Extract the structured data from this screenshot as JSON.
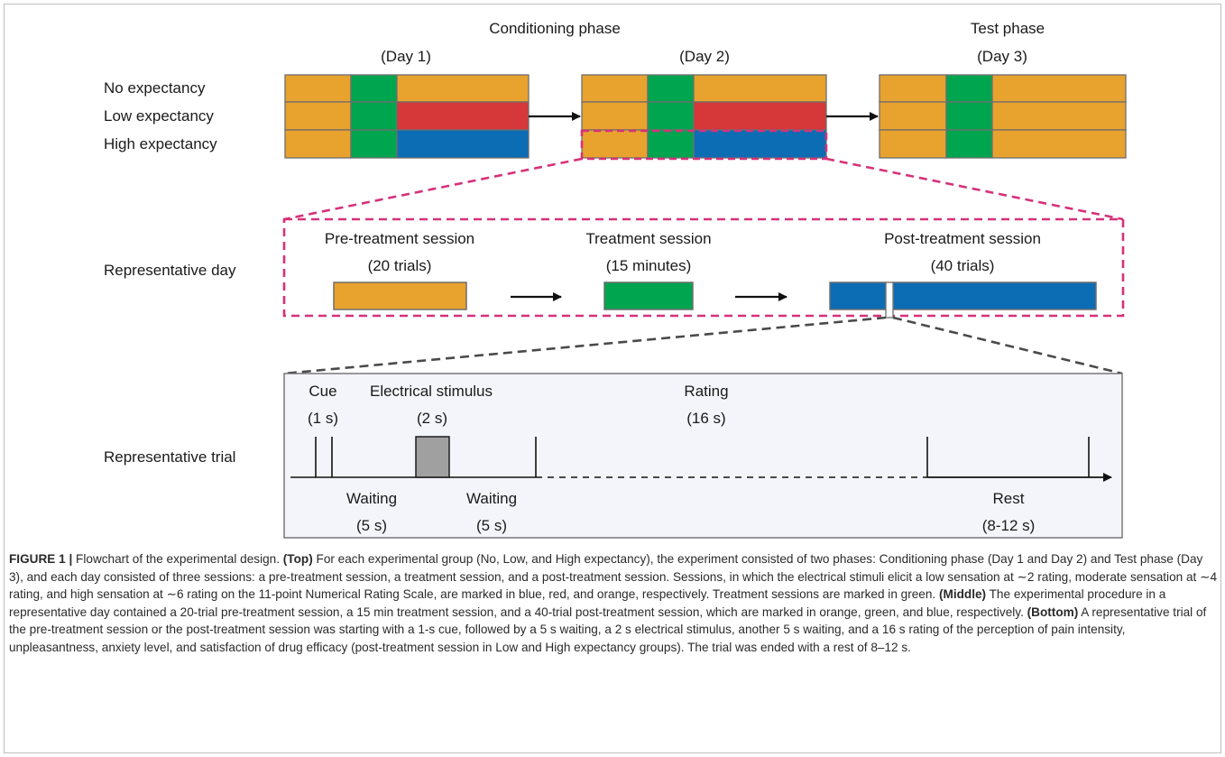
{
  "diagram": {
    "phases": {
      "conditioning": "Conditioning phase",
      "test": "Test phase",
      "day1": "(Day 1)",
      "day2": "(Day 2)",
      "day3": "(Day 3)"
    },
    "groups": [
      "No expectancy",
      "Low expectancy",
      "High expectancy"
    ],
    "representative_day": {
      "label": "Representative day",
      "sessions": [
        {
          "title": "Pre-treatment session",
          "detail": "(20 trials)"
        },
        {
          "title": "Treatment session",
          "detail": "(15 minutes)"
        },
        {
          "title": "Post-treatment session",
          "detail": "(40 trials)"
        }
      ]
    },
    "representative_trial": {
      "label": "Representative trial",
      "cue": "Cue",
      "cue_dur": "(1 s)",
      "stimulus": "Electrical stimulus",
      "stimulus_dur": "(2 s)",
      "rating": "Rating",
      "rating_dur": "(16 s)",
      "waiting1": "Waiting",
      "waiting1_dur": "(5 s)",
      "waiting2": "Waiting",
      "waiting2_dur": "(5 s)",
      "rest": "Rest",
      "rest_dur": "(8-12 s)"
    },
    "colors": {
      "orange": "#E8A22E",
      "green": "#00A54F",
      "red": "#D63738",
      "blue": "#0C6DB5",
      "magenta": "#D6317A",
      "gray_dash": "#4a4a4a",
      "stimulus_gray": "#A0A0A0",
      "panel_bg": "#F4F5FB"
    }
  },
  "caption": {
    "figure_label": "FIGURE 1 |",
    "intro": " Flowchart of the experimental design. ",
    "top_label": "(Top)",
    "top_text": " For each experimental group (No, Low, and High expectancy), the experiment consisted of two phases: Conditioning phase (Day 1 and Day 2) and Test phase (Day 3), and each day consisted of three sessions: a pre-treatment session, a treatment session, and a post-treatment session. Sessions, in which the electrical stimuli elicit a low sensation at ∼2 rating, moderate sensation at ∼4 rating, and high sensation at ∼6 rating on the 11-point Numerical Rating Scale, are marked in blue, red, and orange, respectively. Treatment sessions are marked in green. ",
    "middle_label": "(Middle)",
    "middle_text": " The experimental procedure in a representative day contained a 20-trial pre-treatment session, a 15 min treatment session, and a 40-trial post-treatment session, which are marked in orange, green, and blue, respectively. ",
    "bottom_label": "(Bottom)",
    "bottom_text": " A representative trial of the pre-treatment session or the post-treatment session was starting with a 1-s cue, followed by a 5 s waiting, a 2 s electrical stimulus, another 5 s waiting, and a 16 s rating of the perception of pain intensity, unpleasantness, anxiety level, and satisfaction of drug efficacy (post-treatment session in Low and High expectancy groups). The trial was ended with a rest of 8–12 s."
  }
}
